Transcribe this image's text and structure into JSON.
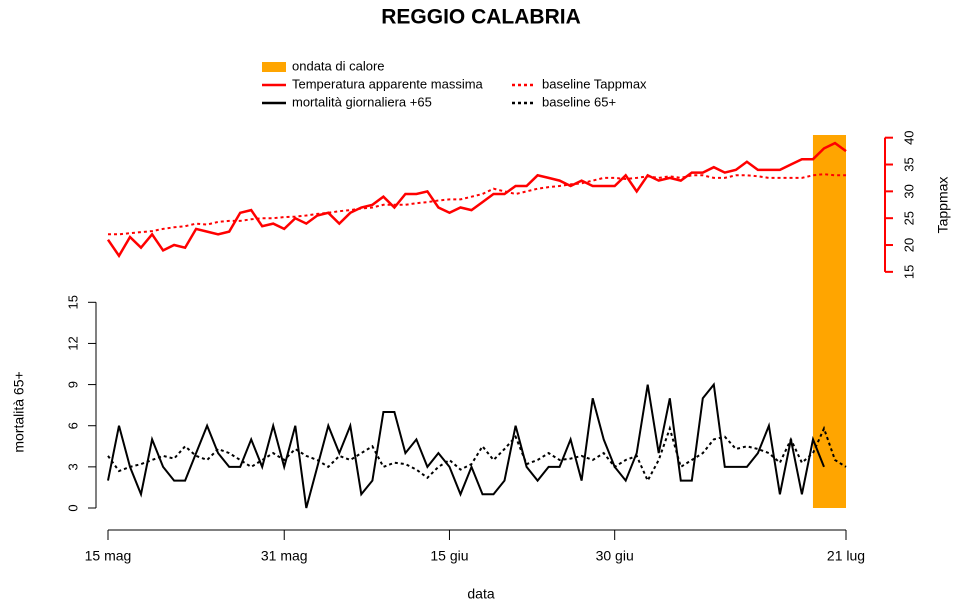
{
  "chart_data": {
    "type": "line",
    "title": "REGGIO CALABRIA",
    "x_label": "data",
    "y_label": "mortalità 65+",
    "y2_label": "Tappmax",
    "categories": [
      "15 mag",
      null,
      null,
      null,
      null,
      null,
      null,
      null,
      null,
      null,
      null,
      null,
      null,
      null,
      null,
      null,
      "31 mag",
      null,
      null,
      null,
      null,
      null,
      null,
      null,
      null,
      null,
      null,
      null,
      null,
      null,
      null,
      "15 giu",
      null,
      null,
      null,
      null,
      null,
      null,
      null,
      null,
      null,
      null,
      null,
      null,
      null,
      null,
      "30 giu",
      null,
      null,
      null,
      null,
      null,
      null,
      null,
      null,
      null,
      null,
      null,
      null,
      null,
      null,
      null,
      null,
      null,
      null,
      null,
      null,
      "21 lug"
    ],
    "heatwave": {
      "name": "ondata di calore",
      "color": "orange",
      "start": 64,
      "end": 67
    },
    "series": [
      {
        "name": "Temperatura apparente massima",
        "color": "red",
        "style": "solid",
        "axis": "y2",
        "values": [
          21,
          18,
          21.5,
          19.5,
          22,
          19,
          20,
          19.5,
          23,
          22.5,
          22,
          22.5,
          26,
          26.5,
          23.5,
          24,
          23,
          25,
          24,
          25.5,
          26,
          24,
          26,
          27,
          27.5,
          29,
          27,
          29.5,
          29.5,
          30,
          27,
          26,
          27,
          26.5,
          28,
          29.5,
          29.5,
          31,
          31,
          33,
          32.5,
          32,
          31,
          32,
          31,
          31,
          31,
          33,
          30,
          33,
          32,
          32.5,
          32,
          33.5,
          33.5,
          34.5,
          33.5,
          34,
          35.5,
          34,
          34,
          34,
          35,
          36,
          36,
          38,
          39,
          37.5
        ]
      },
      {
        "name": "baseline Tappmax",
        "color": "red",
        "style": "dotted",
        "axis": "y2",
        "values": [
          22,
          22,
          22.2,
          22.4,
          22.6,
          23,
          23.3,
          23.5,
          24,
          23.8,
          24.3,
          24.5,
          24.5,
          24.8,
          25,
          25,
          25.2,
          25.3,
          25.5,
          25.8,
          26,
          26.3,
          26.5,
          26.8,
          27,
          27.5,
          27.5,
          27.5,
          27.8,
          28,
          28.3,
          28.5,
          28.5,
          29,
          29.5,
          30.5,
          30,
          29.5,
          30,
          30.5,
          30.8,
          31,
          31.3,
          31.5,
          32,
          32.5,
          32.5,
          32.3,
          32.5,
          32.8,
          32.5,
          32.8,
          32.5,
          33,
          33,
          32.5,
          32.5,
          33,
          33,
          32.8,
          32.5,
          32.5,
          32.5,
          32.5,
          33,
          33.2,
          33,
          33
        ]
      },
      {
        "name": "mortalità giornaliera +65",
        "color": "black",
        "style": "solid",
        "values": [
          2,
          6,
          3,
          1,
          5,
          3,
          2,
          2,
          4,
          6,
          4,
          3,
          3,
          5,
          3,
          6,
          3,
          6,
          0,
          3,
          6,
          4,
          6,
          1,
          2,
          7,
          7,
          4,
          5,
          3,
          4,
          3,
          1,
          3,
          1,
          1,
          2,
          6,
          3,
          2,
          3,
          3,
          5,
          2,
          8,
          5,
          3,
          2,
          4,
          9,
          4,
          8,
          2,
          2,
          8,
          9,
          3,
          3,
          3,
          4,
          6,
          1,
          5,
          1,
          5,
          3,
          null,
          null
        ]
      },
      {
        "name": "baseline 65+",
        "color": "black",
        "style": "dotted",
        "values": [
          3.8,
          2.7,
          3,
          3.2,
          3.5,
          3.8,
          3.6,
          4.5,
          3.8,
          3.5,
          4.3,
          4,
          3.5,
          3,
          3.5,
          4,
          3.5,
          4.3,
          3.8,
          3.5,
          3,
          3.8,
          3.5,
          4,
          4.5,
          3,
          3.3,
          3.2,
          2.8,
          2.2,
          3,
          3.5,
          2.8,
          3.2,
          4.5,
          3.5,
          4.3,
          5.2,
          3.2,
          3.5,
          4,
          3.5,
          3.6,
          3.8,
          3.5,
          4,
          3,
          3.5,
          3.8,
          2,
          3.5,
          5.8,
          3,
          3.5,
          4,
          5,
          5.2,
          4.3,
          4.5,
          4.3,
          4,
          3.3,
          5,
          3.3,
          4,
          5.8,
          3.5,
          3
        ]
      }
    ],
    "ylim": [
      0,
      27.2
    ],
    "yticks": [
      0,
      3,
      6,
      9,
      12,
      15
    ],
    "y2lim": [
      -29,
      40.5
    ],
    "y2ticks": [
      15,
      20,
      25,
      30,
      35,
      40
    ],
    "legend": "top"
  }
}
